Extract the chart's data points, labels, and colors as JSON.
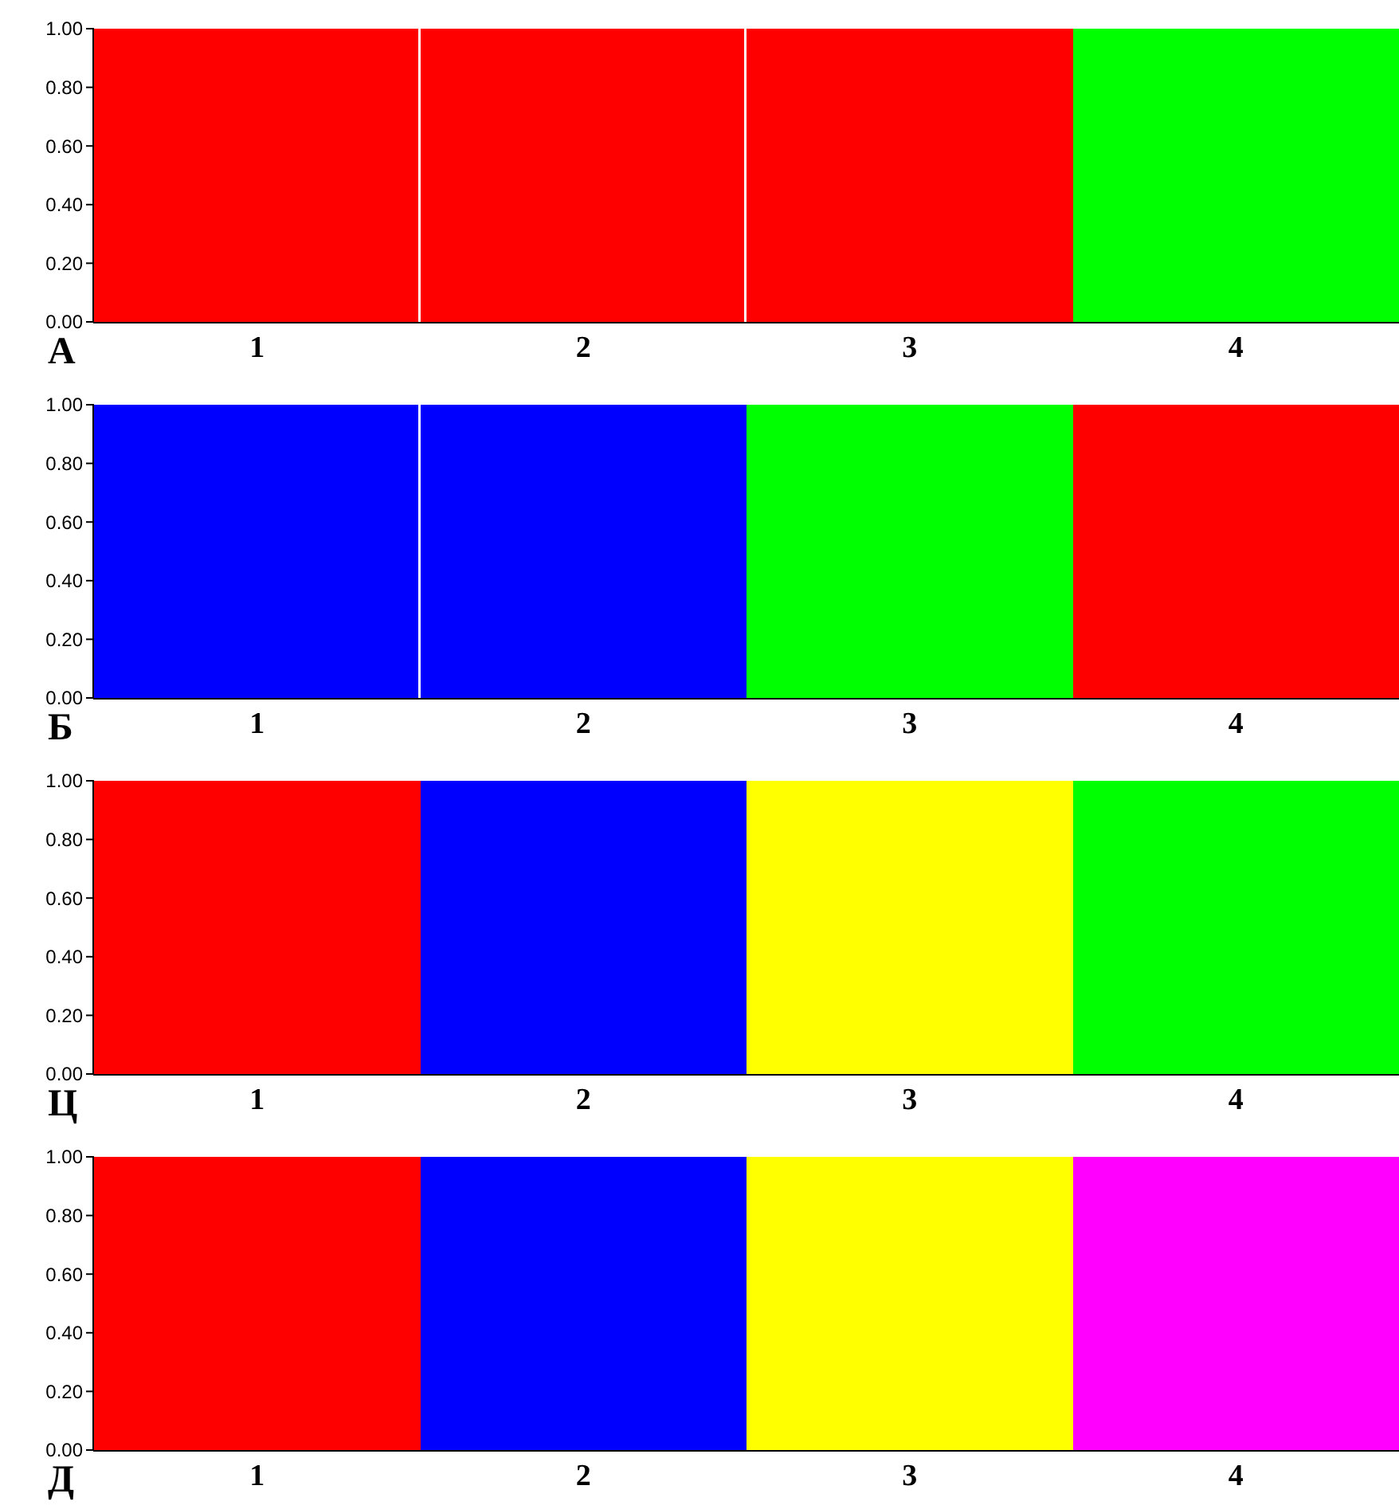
{
  "chart_data": [
    {
      "type": "bar",
      "title": "А",
      "stacked": true,
      "ylim": [
        0,
        1
      ],
      "yticks": [
        {
          "value": 0,
          "label": "0.00"
        },
        {
          "value": 0.2,
          "label": "0.20"
        },
        {
          "value": 0.4,
          "label": "0.40"
        },
        {
          "value": 0.6,
          "label": "0.60"
        },
        {
          "value": 0.8,
          "label": "0.80"
        },
        {
          "value": 1,
          "label": "1.00"
        }
      ],
      "categories": [
        "1",
        "2",
        "3",
        "4"
      ],
      "series": [
        {
          "color": "#ff0000",
          "values": [
            1,
            1,
            1,
            0
          ]
        },
        {
          "color": "#00ff00",
          "values": [
            0,
            0,
            0,
            1
          ]
        }
      ]
    },
    {
      "type": "bar",
      "title": "Б",
      "stacked": true,
      "ylim": [
        0,
        1
      ],
      "yticks": [
        {
          "value": 0,
          "label": "0.00"
        },
        {
          "value": 0.2,
          "label": "0.20"
        },
        {
          "value": 0.4,
          "label": "0.40"
        },
        {
          "value": 0.6,
          "label": "0.60"
        },
        {
          "value": 0.8,
          "label": "0.80"
        },
        {
          "value": 1,
          "label": "1.00"
        }
      ],
      "categories": [
        "1",
        "2",
        "3",
        "4"
      ],
      "series": [
        {
          "color": "#0000ff",
          "values": [
            1,
            1,
            0,
            0
          ]
        },
        {
          "color": "#00ff00",
          "values": [
            0,
            0,
            1,
            0
          ]
        },
        {
          "color": "#ff0000",
          "values": [
            0,
            0,
            0,
            1
          ]
        }
      ]
    },
    {
      "type": "bar",
      "title": "Ц",
      "stacked": true,
      "ylim": [
        0,
        1
      ],
      "yticks": [
        {
          "value": 0,
          "label": "0.00"
        },
        {
          "value": 0.2,
          "label": "0.20"
        },
        {
          "value": 0.4,
          "label": "0.40"
        },
        {
          "value": 0.6,
          "label": "0.60"
        },
        {
          "value": 0.8,
          "label": "0.80"
        },
        {
          "value": 1,
          "label": "1.00"
        }
      ],
      "categories": [
        "1",
        "2",
        "3",
        "4"
      ],
      "series": [
        {
          "color": "#ff0000",
          "values": [
            1,
            0,
            0,
            0
          ]
        },
        {
          "color": "#0000ff",
          "values": [
            0,
            1,
            0,
            0
          ]
        },
        {
          "color": "#ffff00",
          "values": [
            0,
            0,
            1,
            0
          ]
        },
        {
          "color": "#00ff00",
          "values": [
            0,
            0,
            0,
            1
          ]
        }
      ]
    },
    {
      "type": "bar",
      "title": "Д",
      "stacked": true,
      "ylim": [
        0,
        1
      ],
      "yticks": [
        {
          "value": 0,
          "label": "0.00"
        },
        {
          "value": 0.2,
          "label": "0.20"
        },
        {
          "value": 0.4,
          "label": "0.40"
        },
        {
          "value": 0.6,
          "label": "0.60"
        },
        {
          "value": 0.8,
          "label": "0.80"
        },
        {
          "value": 1,
          "label": "1.00"
        }
      ],
      "categories": [
        "1",
        "2",
        "3",
        "4"
      ],
      "series": [
        {
          "color": "#ff0000",
          "values": [
            1,
            0,
            0,
            0
          ]
        },
        {
          "color": "#0000ff",
          "values": [
            0,
            1,
            0,
            0
          ]
        },
        {
          "color": "#ffff00",
          "values": [
            0,
            0,
            1,
            0
          ]
        },
        {
          "color": "#ff00ff",
          "values": [
            0,
            0,
            0,
            1
          ]
        }
      ]
    }
  ]
}
